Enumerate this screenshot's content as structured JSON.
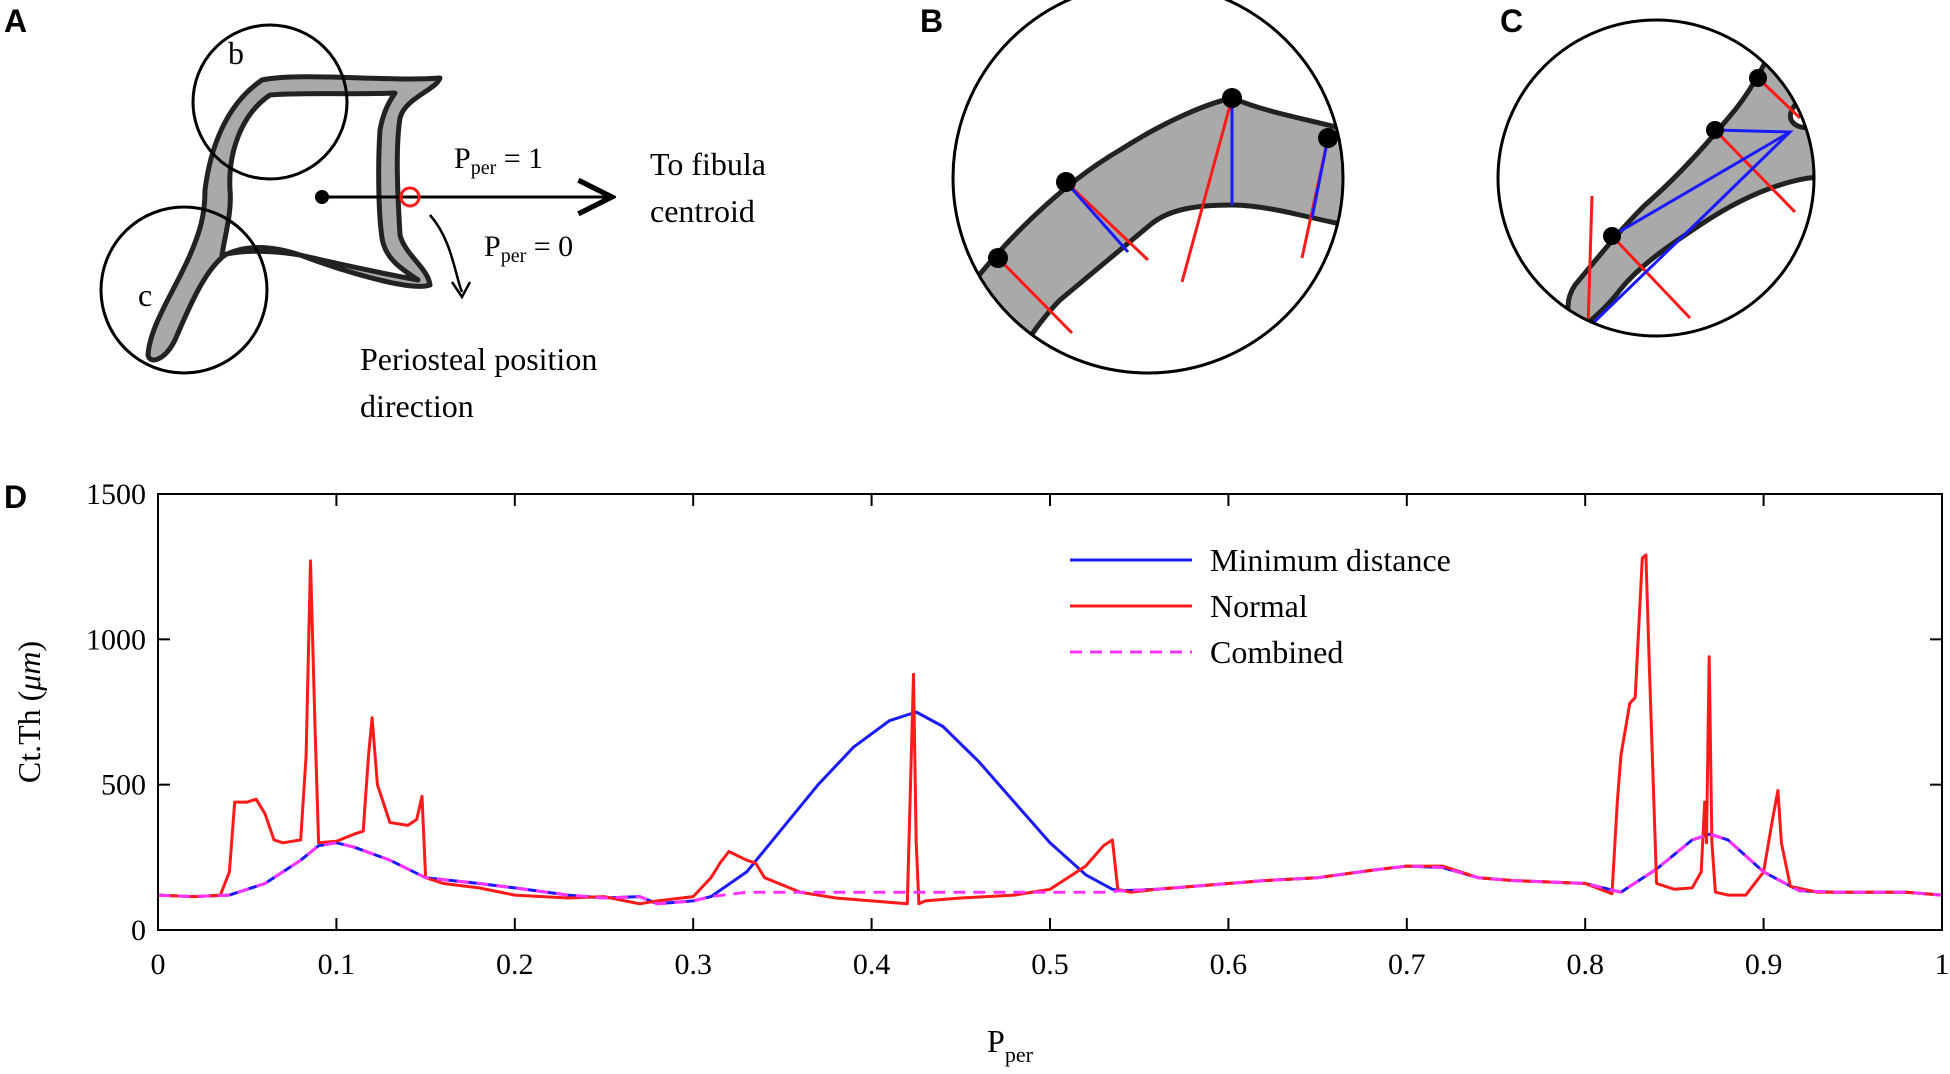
{
  "panels": {
    "a": {
      "letter": "A",
      "circle_b": "b",
      "circle_c": "c",
      "pper1_main": "P",
      "pper1_sub": "per",
      "pper1_eq": " = 1",
      "pper0_main": "P",
      "pper0_sub": "per",
      "pper0_eq": " = 0",
      "fibula_line1": "To fibula",
      "fibula_line2": "centroid",
      "direction_line1": "Periosteal position",
      "direction_line2": "direction"
    },
    "b": {
      "letter": "B"
    },
    "c": {
      "letter": "C"
    },
    "d": {
      "letter": "D"
    }
  },
  "colors": {
    "minimum": "#1a1aff",
    "normal": "#ff1a1a",
    "combined": "#ff33ff",
    "bone": "#a9a9a9"
  },
  "chart_data": {
    "type": "line",
    "ylabel_main": "Ct.Th (",
    "ylabel_unit": "μm",
    "ylabel_close": ")",
    "xlabel_main": "P",
    "xlabel_sub": "per",
    "xlim": [
      0,
      1
    ],
    "ylim": [
      0,
      1500
    ],
    "xticks": [
      0,
      0.1,
      0.2,
      0.3,
      0.4,
      0.5,
      0.6,
      0.7,
      0.8,
      0.9,
      1
    ],
    "xtick_labels": [
      "0",
      "0.1",
      "0.2",
      "0.3",
      "0.4",
      "0.5",
      "0.6",
      "0.7",
      "0.8",
      "0.9",
      "1"
    ],
    "yticks": [
      0,
      500,
      1000,
      1500
    ],
    "ytick_labels": [
      "0",
      "500",
      "1000",
      "1500"
    ],
    "legend": [
      "Minimum distance",
      "Normal",
      "Combined"
    ],
    "legend_position": "top-center",
    "series": [
      {
        "name": "Minimum distance",
        "style": "solid",
        "x": [
          0,
          0.02,
          0.04,
          0.06,
          0.08,
          0.09,
          0.1,
          0.11,
          0.13,
          0.15,
          0.18,
          0.2,
          0.23,
          0.25,
          0.27,
          0.28,
          0.3,
          0.31,
          0.33,
          0.35,
          0.37,
          0.39,
          0.41,
          0.425,
          0.44,
          0.46,
          0.48,
          0.5,
          0.52,
          0.535,
          0.54,
          0.56,
          0.58,
          0.6,
          0.62,
          0.65,
          0.68,
          0.7,
          0.72,
          0.74,
          0.76,
          0.78,
          0.8,
          0.82,
          0.84,
          0.86,
          0.87,
          0.88,
          0.9,
          0.92,
          0.94,
          0.96,
          0.98,
          1
        ],
        "y": [
          120,
          115,
          120,
          160,
          240,
          290,
          300,
          285,
          240,
          180,
          160,
          145,
          120,
          110,
          115,
          90,
          100,
          115,
          200,
          350,
          500,
          630,
          720,
          750,
          700,
          580,
          440,
          300,
          190,
          140,
          135,
          140,
          150,
          160,
          170,
          180,
          205,
          220,
          215,
          180,
          170,
          165,
          160,
          130,
          210,
          310,
          330,
          310,
          200,
          135,
          130,
          130,
          130,
          120
        ]
      },
      {
        "name": "Normal",
        "style": "solid",
        "x": [
          0,
          0.02,
          0.035,
          0.04,
          0.043,
          0.05,
          0.055,
          0.06,
          0.065,
          0.07,
          0.08,
          0.083,
          0.0855,
          0.088,
          0.09,
          0.1,
          0.11,
          0.115,
          0.118,
          0.12,
          0.123,
          0.13,
          0.14,
          0.145,
          0.148,
          0.15,
          0.16,
          0.18,
          0.2,
          0.23,
          0.25,
          0.27,
          0.28,
          0.3,
          0.31,
          0.315,
          0.32,
          0.33,
          0.335,
          0.34,
          0.36,
          0.38,
          0.4,
          0.42,
          0.4235,
          0.425,
          0.4265,
          0.43,
          0.45,
          0.48,
          0.5,
          0.52,
          0.53,
          0.535,
          0.538,
          0.545,
          0.56,
          0.58,
          0.6,
          0.62,
          0.65,
          0.68,
          0.7,
          0.72,
          0.74,
          0.76,
          0.78,
          0.8,
          0.815,
          0.818,
          0.82,
          0.825,
          0.828,
          0.832,
          0.834,
          0.836,
          0.84,
          0.85,
          0.86,
          0.865,
          0.867,
          0.868,
          0.8695,
          0.871,
          0.873,
          0.88,
          0.89,
          0.9,
          0.905,
          0.908,
          0.91,
          0.915,
          0.93,
          0.96,
          0.98,
          1
        ],
        "y": [
          120,
          115,
          120,
          200,
          440,
          440,
          450,
          400,
          310,
          300,
          310,
          600,
          1270,
          700,
          300,
          305,
          330,
          340,
          600,
          730,
          500,
          370,
          360,
          380,
          460,
          180,
          160,
          145,
          120,
          110,
          115,
          90,
          100,
          115,
          180,
          230,
          270,
          240,
          230,
          180,
          130,
          110,
          100,
          90,
          880,
          300,
          90,
          100,
          110,
          120,
          140,
          220,
          290,
          310,
          140,
          130,
          140,
          150,
          160,
          170,
          180,
          205,
          220,
          220,
          180,
          170,
          165,
          160,
          125,
          440,
          600,
          780,
          800,
          1280,
          1290,
          900,
          160,
          140,
          145,
          200,
          440,
          300,
          940,
          300,
          130,
          120,
          120,
          200,
          380,
          480,
          300,
          150,
          130,
          130,
          130,
          120
        ]
      },
      {
        "name": "Combined",
        "style": "dashed",
        "x": [
          0,
          0.02,
          0.04,
          0.06,
          0.08,
          0.09,
          0.1,
          0.11,
          0.13,
          0.15,
          0.18,
          0.2,
          0.23,
          0.25,
          0.27,
          0.28,
          0.3,
          0.31,
          0.33,
          0.36,
          0.4,
          0.43,
          0.47,
          0.5,
          0.53,
          0.54,
          0.56,
          0.58,
          0.6,
          0.62,
          0.65,
          0.68,
          0.7,
          0.72,
          0.74,
          0.76,
          0.78,
          0.8,
          0.82,
          0.84,
          0.86,
          0.87,
          0.88,
          0.9,
          0.92,
          0.94,
          0.96,
          0.98,
          1
        ],
        "y": [
          120,
          115,
          120,
          160,
          240,
          290,
          300,
          285,
          240,
          180,
          160,
          145,
          120,
          110,
          115,
          90,
          100,
          115,
          130,
          130,
          130,
          130,
          130,
          130,
          130,
          135,
          140,
          150,
          160,
          170,
          180,
          205,
          220,
          215,
          180,
          170,
          165,
          160,
          130,
          210,
          310,
          330,
          310,
          200,
          135,
          130,
          130,
          130,
          120
        ]
      }
    ]
  }
}
